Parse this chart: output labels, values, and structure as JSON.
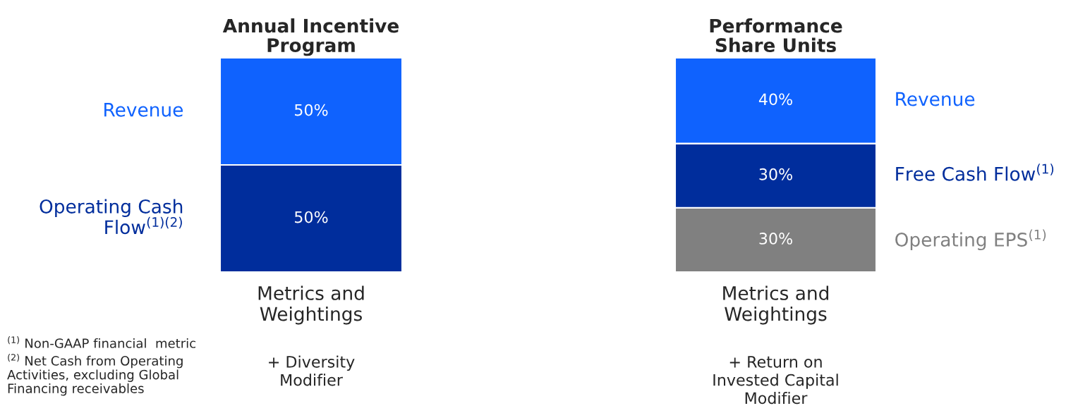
{
  "chart_data": [
    {
      "type": "bar",
      "title": "Annual Incentive\nProgram",
      "xlabel": "Metrics and\nWeightings",
      "categories": [
        null
      ],
      "stacked": true,
      "tick_labels": false,
      "series": [
        {
          "name": "Operating Cash\nFlow$^{(1)(2)}$",
          "color": "#002d9c",
          "values": [
            50
          ],
          "value_labels": [
            "50%"
          ]
        },
        {
          "name": "Revenue",
          "color": "#0f62fe",
          "values": [
            50
          ],
          "value_labels": [
            "50%"
          ]
        }
      ],
      "annotations": [
        "+ Diversity\nModifier",
        "$^{(1)}$ Non-GAAP financial  metric",
        "$^{(2)}$ Net Cash from Operating\nActivities, excluding Global\nFinancing receivables"
      ]
    },
    {
      "type": "bar",
      "title": "Performance\nShare Units",
      "xlabel": "Metrics and\nWeightings",
      "categories": [
        null
      ],
      "stacked": true,
      "tick_labels": false,
      "series": [
        {
          "name": "Operating EPS$^{(1)}$",
          "color": "#808080",
          "values": [
            30
          ],
          "value_labels": [
            "30%"
          ]
        },
        {
          "name": "Free Cash Flow$^{(1)}$",
          "color": "#002d9c",
          "values": [
            30
          ],
          "value_labels": [
            "30%"
          ]
        },
        {
          "name": "Revenue",
          "color": "#0f62fe",
          "values": [
            40
          ],
          "value_labels": [
            "40%"
          ]
        }
      ],
      "annotations": [
        "+ Return on\nInvested Capital\nModifier"
      ]
    }
  ]
}
